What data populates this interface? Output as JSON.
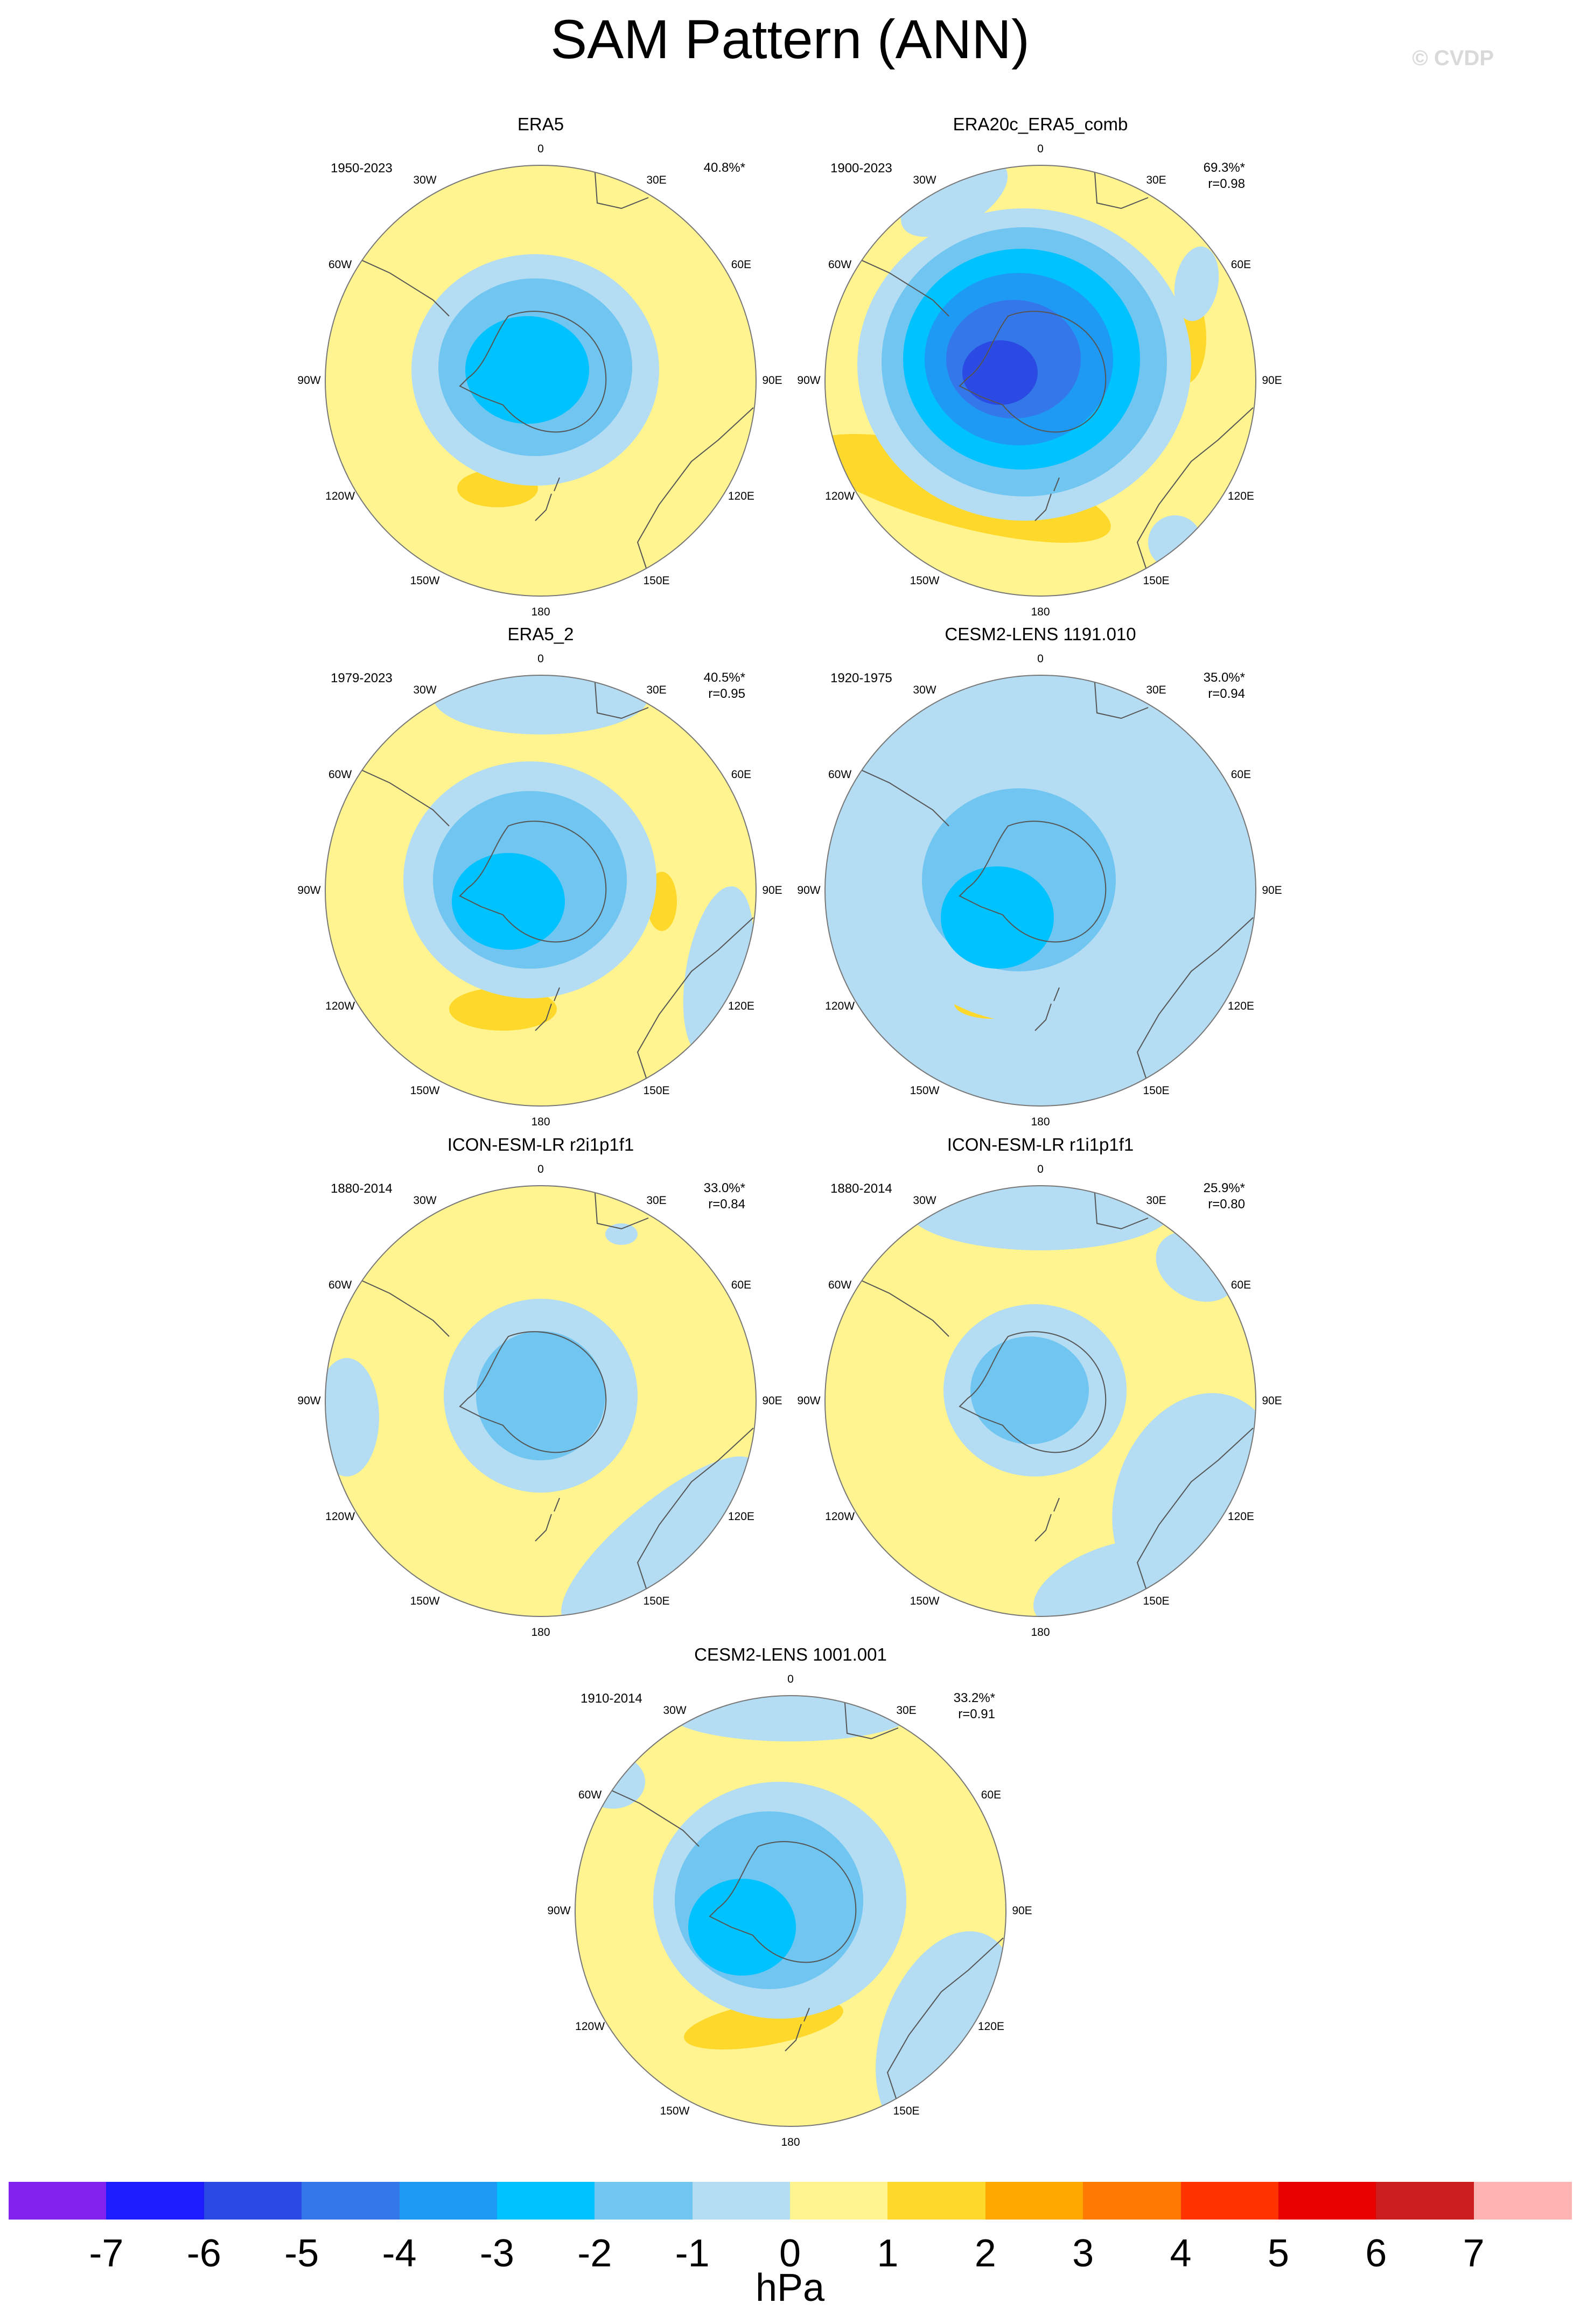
{
  "title": "SAM Pattern (ANN)",
  "watermark": "© CVDP",
  "lon_labels": [
    "0",
    "30E",
    "60E",
    "90E",
    "120E",
    "150E",
    "180",
    "150W",
    "120W",
    "90W",
    "60W",
    "30W"
  ],
  "legend": {
    "unit": "hPa",
    "colors": [
      "#8222ee",
      "#1c1cff",
      "#2a4ae3",
      "#3477ea",
      "#1e9af4",
      "#00c2ff",
      "#70c6f0",
      "#b4dcf2",
      "#fff48f",
      "#ffd82c",
      "#ffa800",
      "#ff7a00",
      "#ff3300",
      "#e80000",
      "#cc1e1e",
      "#ffb3b3"
    ],
    "ticks": [
      "-7",
      "-6",
      "-5",
      "-4",
      "-3",
      "-2",
      "-1",
      "0",
      "1",
      "2",
      "3",
      "4",
      "5",
      "6",
      "7"
    ]
  },
  "panels": [
    {
      "title": "ERA5",
      "years": "1950-2023",
      "pct": "40.8%*",
      "r": ""
    },
    {
      "title": "ERA20c_ERA5_comb",
      "years": "1900-2023",
      "pct": "69.3%*",
      "r": "r=0.98"
    },
    {
      "title": "ERA5_2",
      "years": "1979-2023",
      "pct": "40.5%*",
      "r": "r=0.95"
    },
    {
      "title": "CESM2-LENS 1191.010",
      "years": "1920-1975",
      "pct": "35.0%*",
      "r": "r=0.94"
    },
    {
      "title": "ICON-ESM-LR r2i1p1f1",
      "years": "1880-2014",
      "pct": "33.0%*",
      "r": "r=0.84"
    },
    {
      "title": "ICON-ESM-LR r1i1p1f1",
      "years": "1880-2014",
      "pct": "25.9%*",
      "r": "r=0.80"
    },
    {
      "title": "CESM2-LENS 1001.001",
      "years": "1910-2014",
      "pct": "33.2%*",
      "r": "r=0.91"
    }
  ]
}
